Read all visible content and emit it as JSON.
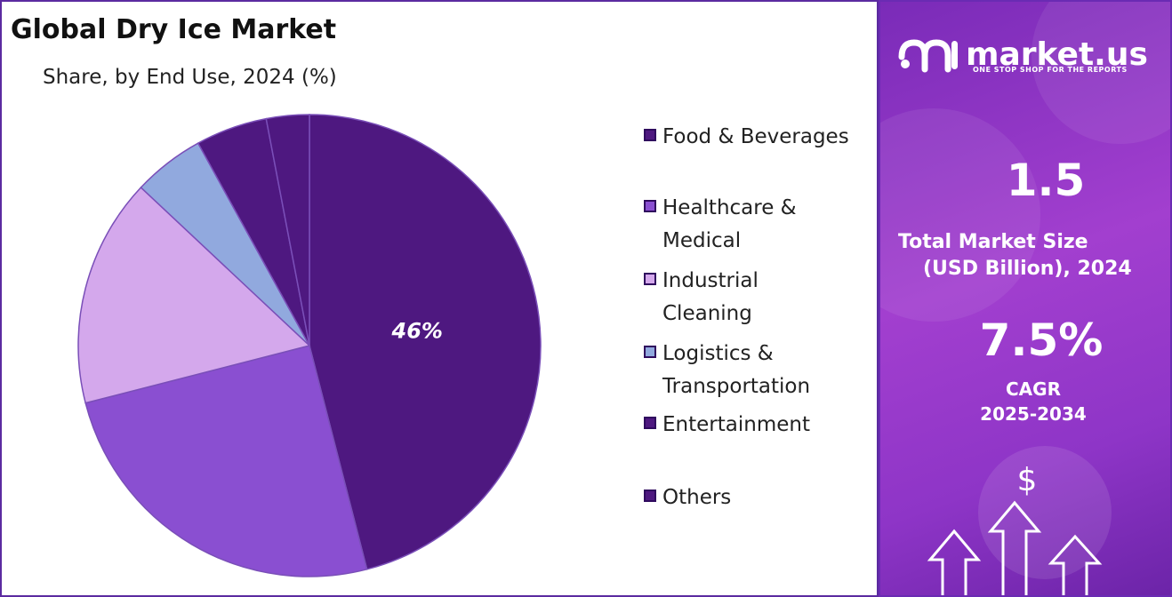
{
  "chart_data": {
    "type": "pie",
    "title": "Global Dry Ice Market",
    "subtitle": "Share, by End Use, 2024 (%)",
    "categories": [
      "Food & Beverages",
      "Healthcare & Medical",
      "Industrial Cleaning",
      "Logistics & Transportation",
      "Entertainment",
      "Others"
    ],
    "values": [
      46,
      25,
      16,
      5,
      5,
      3
    ],
    "data_labels": [
      "46%",
      "",
      "",
      "",
      "",
      ""
    ],
    "colors": [
      "#4e1880",
      "#8a4fd1",
      "#d4a8ec",
      "#91a9de",
      "#4e1880",
      "#4e1880"
    ],
    "legend_placement": "right",
    "start_angle_deg": 0,
    "direction": "clockwise"
  },
  "side_panel": {
    "brand": "market.us",
    "tagline": "ONE STOP SHOP FOR THE REPORTS",
    "market_size_value": "1.5",
    "market_size_label_1": "Total Market Size",
    "market_size_label_2": "(USD Billion), 2024",
    "cagr_value": "7.5%",
    "cagr_label": "CAGR",
    "cagr_period": "2025-2034",
    "icon_symbol": "$",
    "colors": {
      "gradient_start": "#7a2bb8",
      "gradient_mid": "#a23fcf",
      "gradient_end": "#6c24a8"
    }
  },
  "icons": [
    "logo-icon",
    "dollar-icon",
    "up-arrow-icon"
  ]
}
